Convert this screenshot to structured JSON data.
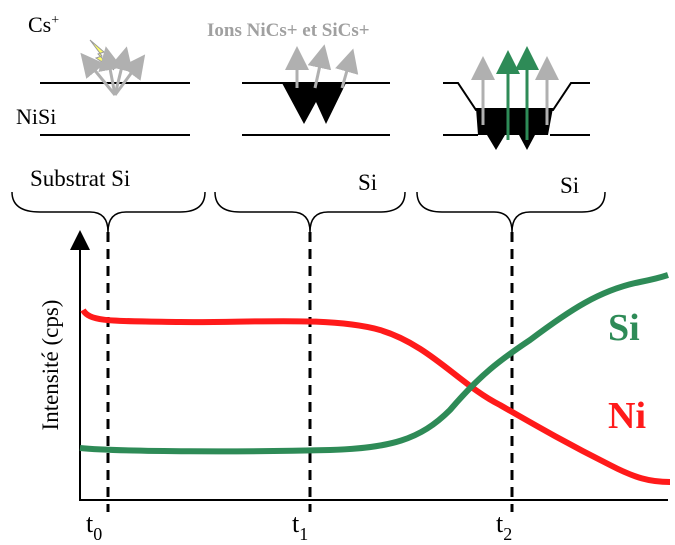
{
  "diagram": {
    "beam": {
      "text": "Cs",
      "sup": "+"
    },
    "ions_label": "Ions NiCs+ et SiCs+",
    "layer_label": "NiSi",
    "stages": [
      "Substrat Si",
      "Si",
      "Si"
    ],
    "y_axis_label": "Intensité (cps)",
    "times": [
      {
        "text": "t",
        "sub": "0"
      },
      {
        "text": "t",
        "sub": "1"
      },
      {
        "text": "t",
        "sub": "2"
      }
    ],
    "curves": [
      {
        "name": "Si",
        "color": "#2e8b57"
      },
      {
        "name": "Ni",
        "color": "#ff1a1a"
      }
    ]
  }
}
